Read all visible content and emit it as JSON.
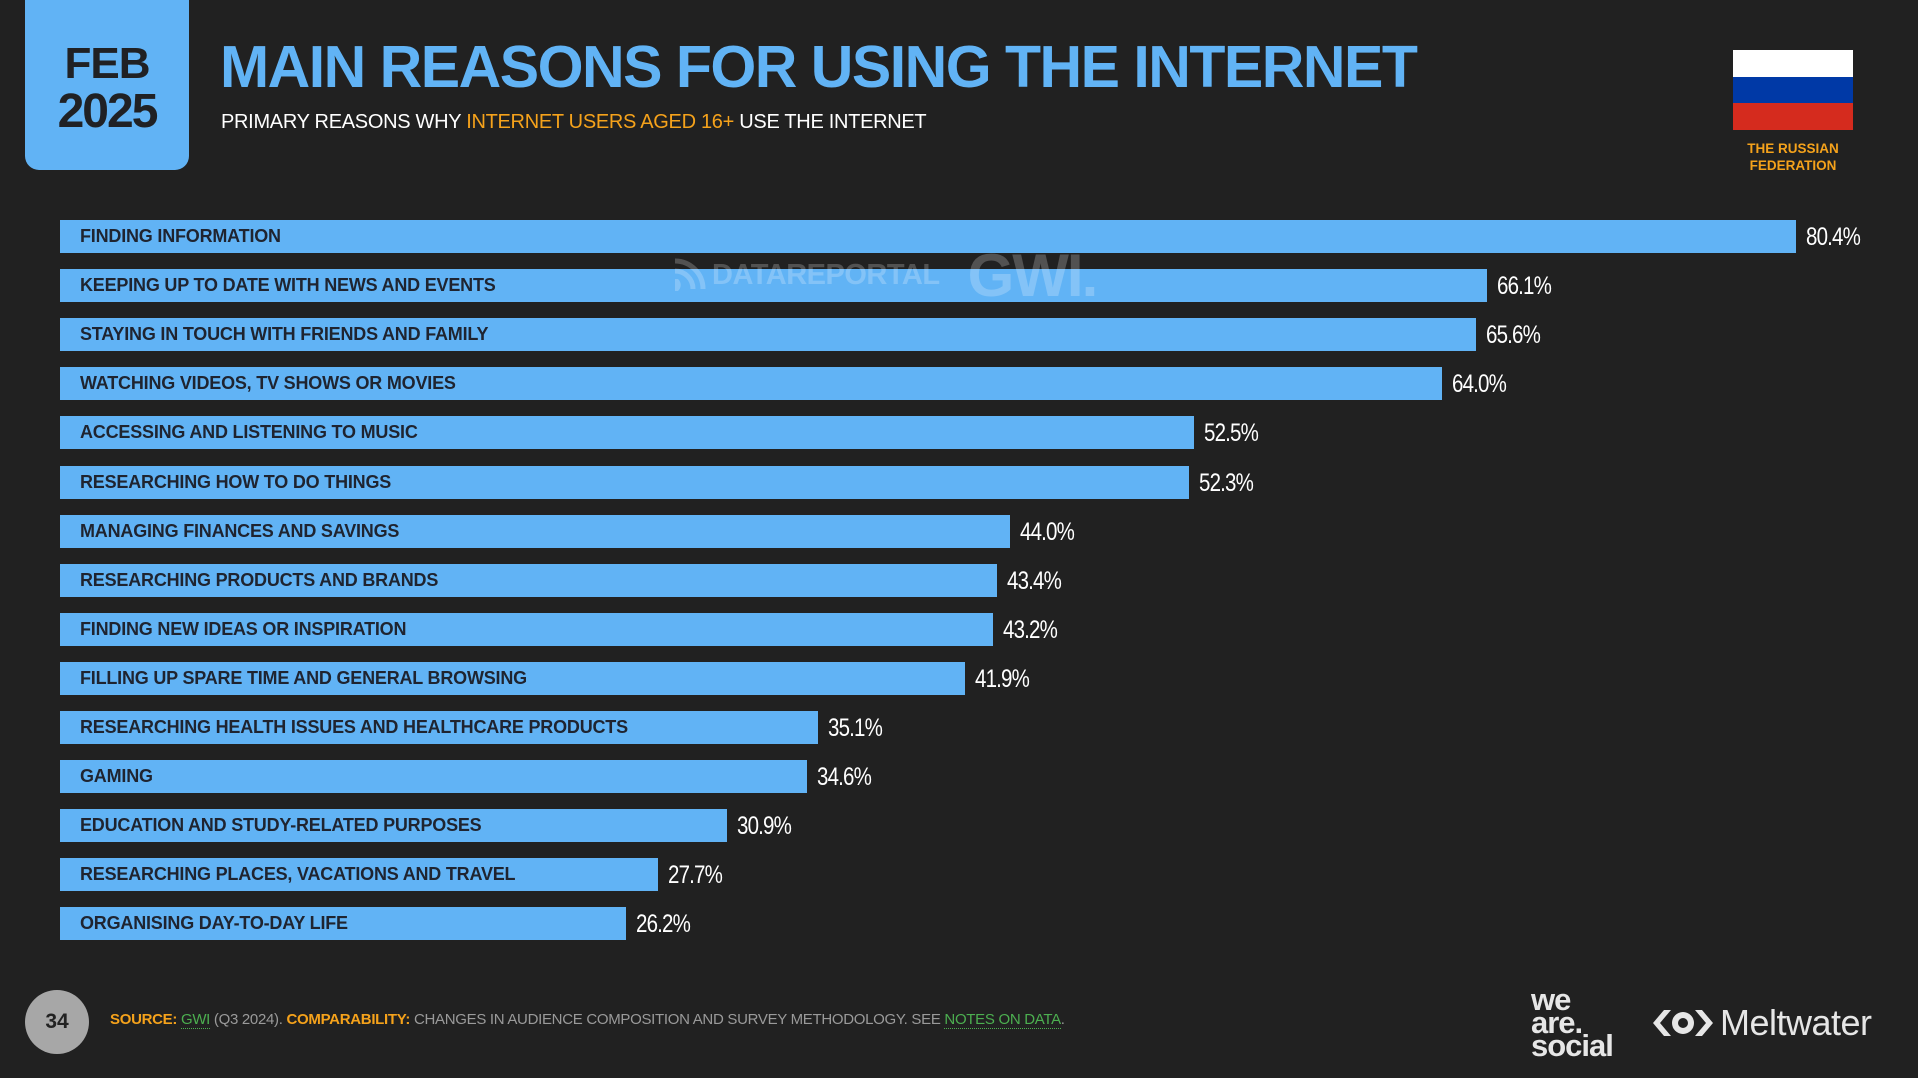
{
  "header": {
    "date_month": "FEB",
    "date_year": "2025",
    "title": "MAIN REASONS FOR USING THE INTERNET",
    "subtitle_pre": "PRIMARY REASONS WHY ",
    "subtitle_highlight": "INTERNET USERS AGED 16+",
    "subtitle_post": " USE THE INTERNET"
  },
  "country": {
    "name_line1": "THE RUSSIAN",
    "name_line2": "FEDERATION",
    "flag_colors": [
      "#ffffff",
      "#0039a6",
      "#d52b1e"
    ]
  },
  "watermark": {
    "datareportal": "DATAREPORTAL",
    "gwi": "GWI."
  },
  "colors": {
    "background": "#212121",
    "bar": "#61b3f5",
    "accent": "#f5a21b",
    "link": "#4caf50"
  },
  "chart_data": {
    "type": "bar",
    "orientation": "horizontal",
    "title": "MAIN REASONS FOR USING THE INTERNET",
    "subtitle": "PRIMARY REASONS WHY INTERNET USERS AGED 16+ USE THE INTERNET",
    "xlabel": "",
    "ylabel": "",
    "unit": "%",
    "grid": false,
    "legend": null,
    "categories": [
      "FINDING INFORMATION",
      "KEEPING UP TO DATE WITH NEWS AND EVENTS",
      "STAYING IN TOUCH WITH FRIENDS AND FAMILY",
      "WATCHING VIDEOS, TV SHOWS OR MOVIES",
      "ACCESSING AND LISTENING TO MUSIC",
      "RESEARCHING HOW TO DO THINGS",
      "MANAGING FINANCES AND SAVINGS",
      "RESEARCHING PRODUCTS AND BRANDS",
      "FINDING NEW IDEAS OR INSPIRATION",
      "FILLING UP SPARE TIME AND GENERAL BROWSING",
      "RESEARCHING HEALTH ISSUES AND HEALTHCARE PRODUCTS",
      "GAMING",
      "EDUCATION AND STUDY-RELATED PURPOSES",
      "RESEARCHING PLACES, VACATIONS AND TRAVEL",
      "ORGANISING DAY-TO-DAY LIFE"
    ],
    "values": [
      80.4,
      66.1,
      65.6,
      64.0,
      52.5,
      52.3,
      44.0,
      43.4,
      43.2,
      41.9,
      35.1,
      34.6,
      30.9,
      27.7,
      26.2
    ],
    "value_labels": [
      "80.4%",
      "66.1%",
      "65.6%",
      "64.0%",
      "52.5%",
      "52.3%",
      "44.0%",
      "43.4%",
      "43.2%",
      "41.9%",
      "35.1%",
      "34.6%",
      "30.9%",
      "27.7%",
      "26.2%"
    ],
    "xlim": [
      0,
      80.4
    ]
  },
  "footer": {
    "page_number": "34",
    "source_key": "SOURCE:",
    "source_link": "GWI",
    "source_detail": " (Q3 2024). ",
    "comparability_key": "COMPARABILITY:",
    "comparability_text": " CHANGES IN AUDIENCE COMPOSITION AND SURVEY METHODOLOGY. SEE ",
    "notes_link": "NOTES ON DATA",
    "end": "."
  },
  "logos": {
    "we": "we",
    "are": "are.",
    "social": "social",
    "meltwater": "Meltwater"
  }
}
